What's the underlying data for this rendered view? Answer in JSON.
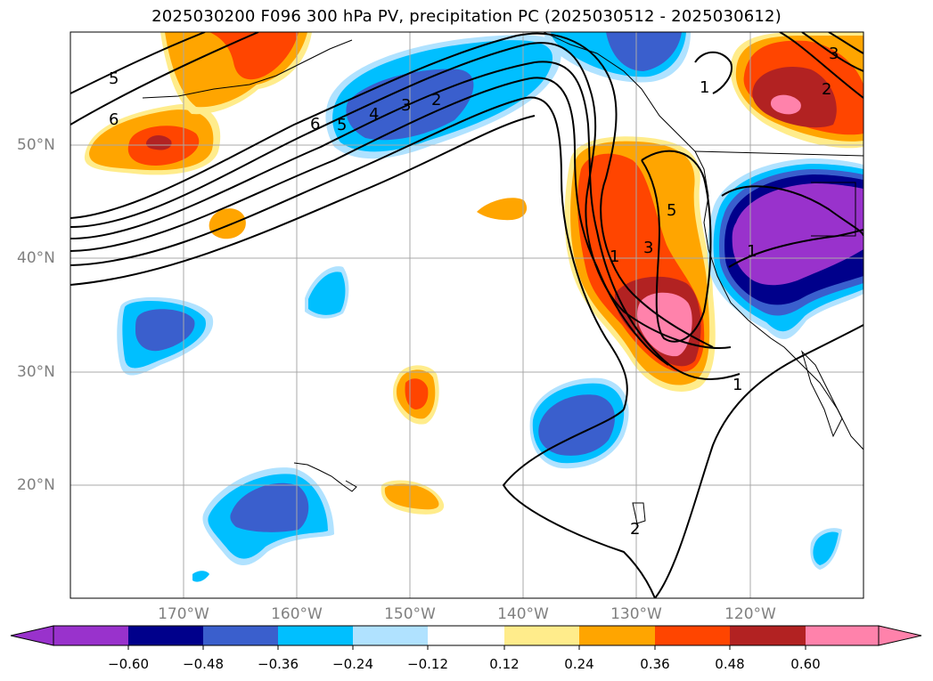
{
  "title": "2025030200 F096 300 hPa PV, precipitation PC (2025030512 - 2025030612)",
  "map": {
    "projection": "equirectangular",
    "lon_range": [
      -180,
      -110
    ],
    "lat_range": [
      10,
      60
    ],
    "lat_ticks": [
      "50°N",
      "40°N",
      "30°N",
      "20°N"
    ],
    "lon_ticks": [
      "170°W",
      "160°W",
      "150°W",
      "140°W",
      "130°W",
      "120°W"
    ],
    "pv_contour_labels": [
      "5",
      "6",
      "6",
      "5",
      "4",
      "3",
      "2",
      "1",
      "2",
      "5",
      "3",
      "1",
      "1",
      "1",
      "2",
      "3"
    ]
  },
  "colorbar": {
    "tick_labels": [
      "−0.60",
      "−0.48",
      "−0.36",
      "−0.24",
      "−0.12",
      "0.12",
      "0.24",
      "0.36",
      "0.48",
      "0.60"
    ],
    "colors": [
      "#9932cc",
      "#00008b",
      "#3a5fcd",
      "#00bfff",
      "#b0e2ff",
      "#ffffff",
      "#ffec8b",
      "#ffa500",
      "#ff4500",
      "#b22222",
      "#ff82ab"
    ]
  }
}
